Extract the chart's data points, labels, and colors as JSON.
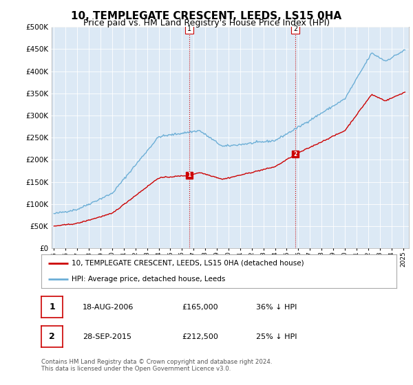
{
  "title": "10, TEMPLEGATE CRESCENT, LEEDS, LS15 0HA",
  "subtitle": "Price paid vs. HM Land Registry's House Price Index (HPI)",
  "ytick_values": [
    0,
    50000,
    100000,
    150000,
    200000,
    250000,
    300000,
    350000,
    400000,
    450000,
    500000
  ],
  "ylim": [
    0,
    500000
  ],
  "xlim_start": 1994.8,
  "xlim_end": 2025.5,
  "bg_color": "#dce9f5",
  "hpi_color": "#6baed6",
  "price_color": "#cc0000",
  "sale1_date": 2006.63,
  "sale1_price": 165000,
  "sale2_date": 2015.75,
  "sale2_price": 212500,
  "legend_line1": "10, TEMPLEGATE CRESCENT, LEEDS, LS15 0HA (detached house)",
  "legend_line2": "HPI: Average price, detached house, Leeds",
  "table_row1": [
    "1",
    "18-AUG-2006",
    "£165,000",
    "36% ↓ HPI"
  ],
  "table_row2": [
    "2",
    "28-SEP-2015",
    "£212,500",
    "25% ↓ HPI"
  ],
  "footer": "Contains HM Land Registry data © Crown copyright and database right 2024.\nThis data is licensed under the Open Government Licence v3.0.",
  "title_fontsize": 11,
  "subtitle_fontsize": 9,
  "grid_color": "#ffffff"
}
